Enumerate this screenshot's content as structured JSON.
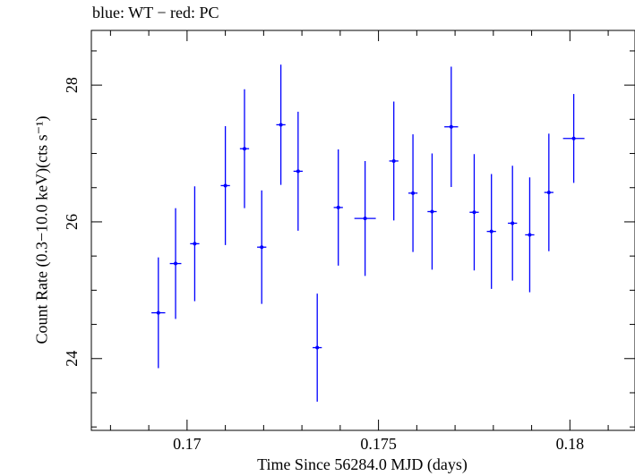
{
  "chart_data": {
    "type": "scatter",
    "title": "blue: WT − red: PC",
    "xlabel": "Time Since 56284.0 MJD (days)",
    "ylabel": "Count Rate (0.3−10.0 keV)(cts s⁻¹)",
    "xlim": [
      0.1675,
      0.1817
    ],
    "ylim": [
      22.95,
      28.8
    ],
    "xticks": [
      0.17,
      0.175,
      0.18
    ],
    "xtick_labels": [
      "0.17",
      "0.175",
      "0.18"
    ],
    "yticks": [
      24,
      26,
      28
    ],
    "ytick_labels": [
      "24",
      "26",
      "28"
    ],
    "grid": false,
    "legend": "none",
    "series": [
      {
        "color": "#0000ff",
        "points": [
          {
            "x": 0.16925,
            "xerr": 0.00018,
            "y": 24.67,
            "yerr": 0.81
          },
          {
            "x": 0.1697,
            "xerr": 0.00015,
            "y": 25.39,
            "yerr": 0.81
          },
          {
            "x": 0.1702,
            "xerr": 0.00012,
            "y": 25.68,
            "yerr": 0.84
          },
          {
            "x": 0.171,
            "xerr": 0.00012,
            "y": 26.53,
            "yerr": 0.87
          },
          {
            "x": 0.1715,
            "xerr": 0.00012,
            "y": 27.07,
            "yerr": 0.87
          },
          {
            "x": 0.17195,
            "xerr": 0.00012,
            "y": 25.63,
            "yerr": 0.83
          },
          {
            "x": 0.17245,
            "xerr": 0.00012,
            "y": 27.42,
            "yerr": 0.88
          },
          {
            "x": 0.1729,
            "xerr": 0.00012,
            "y": 26.74,
            "yerr": 0.87
          },
          {
            "x": 0.1734,
            "xerr": 0.00012,
            "y": 24.16,
            "yerr": 0.79
          },
          {
            "x": 0.17395,
            "xerr": 0.00012,
            "y": 26.21,
            "yerr": 0.85
          },
          {
            "x": 0.17465,
            "xerr": 0.00028,
            "y": 26.05,
            "yerr": 0.84
          },
          {
            "x": 0.1754,
            "xerr": 0.00012,
            "y": 26.89,
            "yerr": 0.87
          },
          {
            "x": 0.1759,
            "xerr": 0.00012,
            "y": 26.42,
            "yerr": 0.86
          },
          {
            "x": 0.1764,
            "xerr": 0.00012,
            "y": 26.15,
            "yerr": 0.85
          },
          {
            "x": 0.1769,
            "xerr": 0.00018,
            "y": 27.39,
            "yerr": 0.88
          },
          {
            "x": 0.1775,
            "xerr": 0.00012,
            "y": 26.14,
            "yerr": 0.85
          },
          {
            "x": 0.17795,
            "xerr": 0.00012,
            "y": 25.86,
            "yerr": 0.84
          },
          {
            "x": 0.1785,
            "xerr": 0.00012,
            "y": 25.98,
            "yerr": 0.84
          },
          {
            "x": 0.17895,
            "xerr": 0.00012,
            "y": 25.81,
            "yerr": 0.84
          },
          {
            "x": 0.17945,
            "xerr": 0.00012,
            "y": 26.43,
            "yerr": 0.86
          },
          {
            "x": 0.1801,
            "xerr": 0.00028,
            "y": 27.22,
            "yerr": 0.65
          }
        ]
      }
    ]
  }
}
